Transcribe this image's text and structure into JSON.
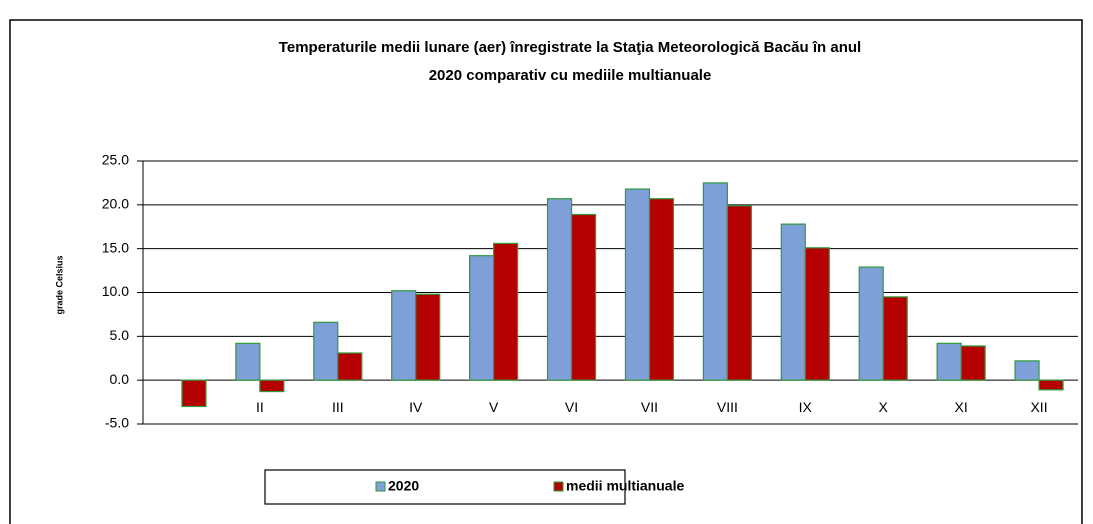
{
  "chart_data": {
    "type": "bar",
    "title": "Temperaturile medii lunare (aer)  înregistrate la Staţia Meteorologică Bacău în anul",
    "subtitle": "2020 comparativ cu mediile multianuale",
    "ylabel": "grade Celsius",
    "categories": [
      null,
      "II",
      "III",
      "IV",
      "V",
      "VI",
      "VII",
      "VIII",
      "IX",
      "X",
      "XI",
      "XII"
    ],
    "series": [
      {
        "name": "2020",
        "color": "#7f9fd8",
        "values": [
          0,
          4.2,
          6.6,
          10.2,
          14.2,
          20.7,
          21.8,
          22.5,
          17.8,
          12.9,
          4.2,
          2.2
        ]
      },
      {
        "name": "medii multianuale",
        "color": "#b40000",
        "values": [
          -3.0,
          -1.3,
          3.1,
          9.8,
          15.6,
          18.9,
          20.7,
          19.9,
          15.1,
          9.5,
          3.9,
          -1.1
        ]
      }
    ],
    "ylim": [
      -5,
      25
    ],
    "yticks": [
      {
        "value": -5,
        "label": "-5.0"
      },
      {
        "value": 0,
        "label": "0.0"
      },
      {
        "value": 5,
        "label": "5.0"
      },
      {
        "value": 10,
        "label": "10.0"
      },
      {
        "value": 15,
        "label": "15.0"
      },
      {
        "value": 20,
        "label": "20.0"
      },
      {
        "value": 25,
        "label": "25.0"
      }
    ],
    "grid": true
  }
}
